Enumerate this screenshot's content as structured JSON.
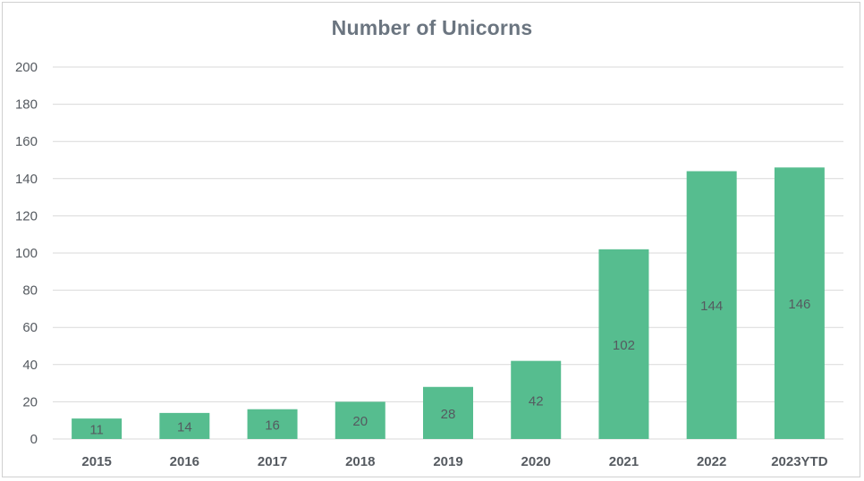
{
  "chart_data": {
    "type": "bar",
    "title": "Number of Unicorns",
    "xlabel": "",
    "ylabel": "",
    "categories": [
      "2015",
      "2016",
      "2017",
      "2018",
      "2019",
      "2020",
      "2021",
      "2022",
      "2023YTD"
    ],
    "values": [
      11,
      14,
      16,
      20,
      28,
      42,
      102,
      144,
      146
    ],
    "data_labels": [
      "11",
      "14",
      "16",
      "20",
      "28",
      "42",
      "102",
      "144",
      "146"
    ],
    "ylim": [
      0,
      200
    ],
    "yticks": [
      0,
      20,
      40,
      60,
      80,
      100,
      120,
      140,
      160,
      180,
      200
    ],
    "ytick_labels": [
      "0",
      "20",
      "40",
      "60",
      "80",
      "100",
      "120",
      "140",
      "160",
      "180",
      "200"
    ],
    "grid": true,
    "legend": "none",
    "colors": {
      "bar": "#56bd8f",
      "grid": "#d9d9d9",
      "axis_text": "#555a60",
      "title": "#6b7580"
    }
  }
}
